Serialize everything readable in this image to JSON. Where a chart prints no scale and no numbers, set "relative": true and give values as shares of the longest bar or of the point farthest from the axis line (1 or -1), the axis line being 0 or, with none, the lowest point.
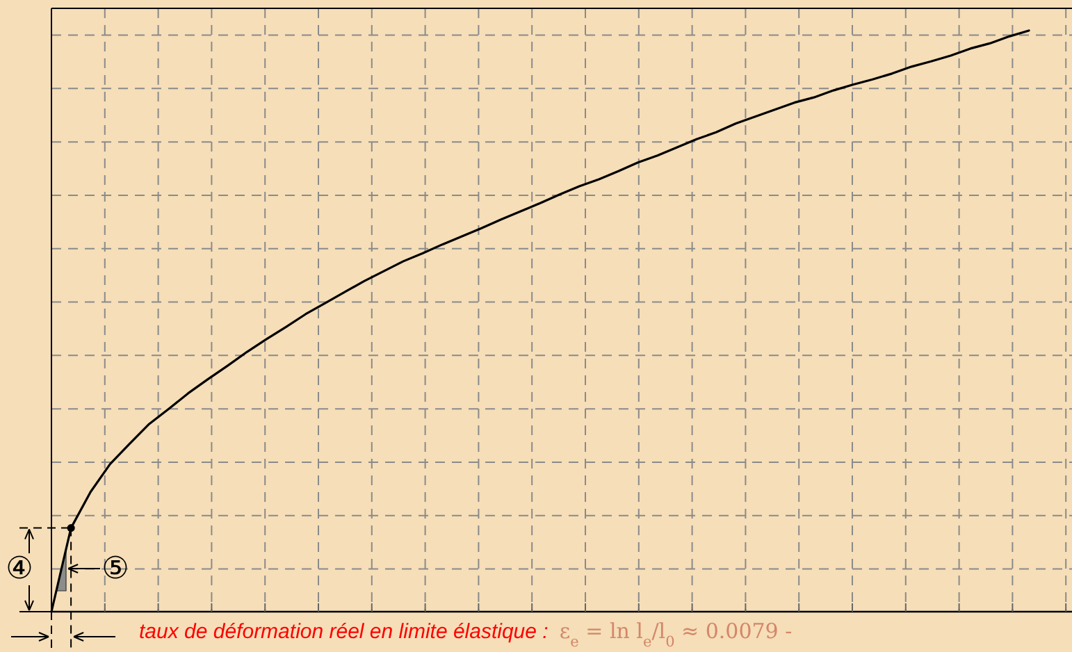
{
  "chart_data": {
    "type": "line",
    "relative": true,
    "grid": true,
    "categories": [
      null,
      null,
      null,
      null,
      null,
      null,
      null,
      null,
      null,
      null,
      null,
      null,
      null,
      null,
      null,
      null,
      null,
      null,
      null,
      null,
      null,
      null,
      null,
      null,
      null,
      null,
      null,
      null,
      null,
      null,
      null,
      null,
      null,
      null,
      null,
      null,
      null,
      null,
      null,
      null,
      null,
      null,
      null,
      null,
      null,
      null,
      null,
      null,
      null,
      null,
      null
    ],
    "series": [
      {
        "color": "#000000",
        "values": [
          0,
          0.144,
          0.206,
          0.254,
          0.289,
          0.323,
          0.349,
          0.376,
          0.4,
          0.423,
          0.447,
          0.469,
          0.49,
          0.512,
          0.531,
          0.55,
          0.569,
          0.586,
          0.603,
          0.617,
          0.632,
          0.646,
          0.66,
          0.675,
          0.689,
          0.703,
          0.718,
          0.732,
          0.744,
          0.758,
          0.773,
          0.785,
          0.799,
          0.813,
          0.825,
          0.84,
          0.852,
          0.864,
          0.876,
          0.885,
          0.897,
          0.907,
          0.916,
          0.926,
          0.938,
          0.947,
          0.957,
          0.969,
          0.978,
          0.99,
          1
        ]
      }
    ],
    "annotations": [
      "④",
      "⑤",
      "taux de déformation réel en limite élastique :",
      "ε$_{e}$ = ln l$_{e}$/l$_{0}$ ≈ 0.0079 -"
    ]
  }
}
